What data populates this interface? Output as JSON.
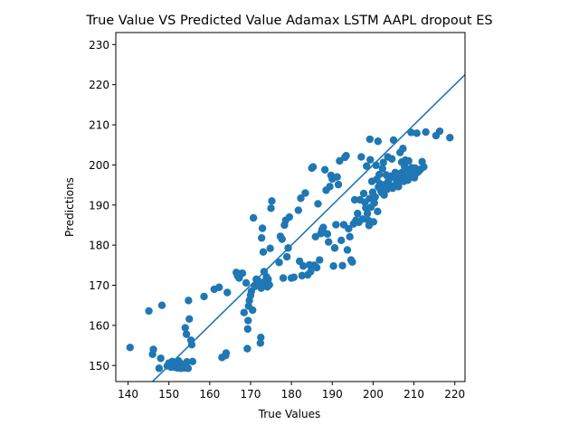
{
  "chart_data": {
    "type": "scatter",
    "title": "True Value VS Predicted Value  Adamax LSTM AAPL dropout ES",
    "xlabel": "True Values",
    "ylabel": "Predictions",
    "xlim": [
      137,
      222.5
    ],
    "ylim": [
      146,
      233
    ],
    "xticks": [
      140,
      150,
      160,
      170,
      180,
      190,
      200,
      210,
      220
    ],
    "yticks": [
      150,
      160,
      170,
      180,
      190,
      200,
      210,
      220,
      230
    ],
    "grid": false,
    "legend": "none",
    "point_color": "#1f77b4",
    "reference_line": {
      "type": "identity",
      "color": "#1f77b4"
    },
    "series": [
      {
        "points": [
          [
            140.5,
            154.5
          ],
          [
            145.1,
            163.6
          ],
          [
            146.0,
            152.8
          ],
          [
            146.2,
            154.0
          ],
          [
            147.6,
            149.3
          ],
          [
            148.0,
            151.8
          ],
          [
            148.3,
            165.0
          ],
          [
            149.6,
            149.9
          ],
          [
            150.0,
            150.6
          ],
          [
            150.5,
            149.6
          ],
          [
            150.8,
            151.0
          ],
          [
            151.1,
            150.6
          ],
          [
            151.4,
            149.6
          ],
          [
            151.7,
            150.3
          ],
          [
            152.0,
            149.4
          ],
          [
            152.3,
            151.2
          ],
          [
            152.6,
            150.8
          ],
          [
            152.9,
            149.3
          ],
          [
            153.2,
            150.0
          ],
          [
            153.5,
            149.6
          ],
          [
            153.8,
            149.4
          ],
          [
            154.0,
            159.4
          ],
          [
            154.3,
            157.8
          ],
          [
            154.4,
            150.9
          ],
          [
            154.7,
            149.3
          ],
          [
            154.8,
            166.2
          ],
          [
            155.0,
            161.6
          ],
          [
            155.4,
            156.3
          ],
          [
            155.6,
            155.2
          ],
          [
            155.8,
            151.0
          ],
          [
            158.6,
            167.2
          ],
          [
            161.1,
            169.0
          ],
          [
            162.3,
            169.5
          ],
          [
            163.0,
            152.0
          ],
          [
            163.9,
            152.5
          ],
          [
            164.0,
            153.1
          ],
          [
            164.3,
            168.2
          ],
          [
            166.5,
            173.2
          ],
          [
            166.8,
            172.4
          ],
          [
            167.2,
            171.8
          ],
          [
            167.6,
            172.9
          ],
          [
            168.0,
            173.0
          ],
          [
            168.4,
            163.2
          ],
          [
            168.9,
            170.6
          ],
          [
            169.2,
            154.2
          ],
          [
            169.3,
            159.1
          ],
          [
            169.4,
            161.2
          ],
          [
            169.5,
            164.8
          ],
          [
            169.7,
            166.2
          ],
          [
            170.0,
            167.5
          ],
          [
            170.2,
            168.5
          ],
          [
            170.5,
            163.8
          ],
          [
            170.7,
            186.8
          ],
          [
            171.0,
            169.7
          ],
          [
            171.4,
            171.5
          ],
          [
            171.6,
            170.5
          ],
          [
            171.8,
            171.2
          ],
          [
            172.1,
            170.0
          ],
          [
            172.4,
            155.6
          ],
          [
            172.5,
            157.0
          ],
          [
            172.6,
            169.3
          ],
          [
            172.7,
            181.8
          ],
          [
            172.9,
            184.2
          ],
          [
            173.1,
            178.3
          ],
          [
            173.3,
            173.4
          ],
          [
            173.5,
            171.0
          ],
          [
            173.7,
            170.3
          ],
          [
            173.9,
            172.1
          ],
          [
            174.1,
            169.6
          ],
          [
            174.3,
            171.5
          ],
          [
            174.6,
            170.1
          ],
          [
            174.8,
            179.2
          ],
          [
            175.0,
            189.2
          ],
          [
            175.2,
            191.0
          ],
          [
            177.0,
            175.7
          ],
          [
            177.3,
            182.2
          ],
          [
            177.7,
            181.5
          ],
          [
            178.0,
            171.8
          ],
          [
            178.3,
            185.0
          ],
          [
            178.6,
            186.2
          ],
          [
            178.9,
            177.1
          ],
          [
            179.2,
            179.3
          ],
          [
            179.5,
            187.0
          ],
          [
            180.0,
            171.8
          ],
          [
            180.6,
            172.0
          ],
          [
            181.7,
            188.7
          ],
          [
            182.0,
            176.0
          ],
          [
            182.3,
            191.7
          ],
          [
            182.6,
            172.4
          ],
          [
            182.9,
            174.8
          ],
          [
            183.4,
            193.0
          ],
          [
            184.0,
            172.6
          ],
          [
            184.4,
            175.1
          ],
          [
            184.7,
            173.4
          ],
          [
            185.0,
            199.2
          ],
          [
            185.3,
            199.5
          ],
          [
            185.6,
            175.0
          ],
          [
            185.9,
            182.1
          ],
          [
            186.2,
            174.4
          ],
          [
            186.5,
            190.3
          ],
          [
            186.9,
            176.3
          ],
          [
            187.2,
            182.9
          ],
          [
            187.5,
            183.9
          ],
          [
            187.8,
            184.4
          ],
          [
            188.2,
            198.8
          ],
          [
            188.5,
            193.7
          ],
          [
            188.8,
            182.8
          ],
          [
            189.1,
            180.8
          ],
          [
            189.4,
            194.6
          ],
          [
            189.7,
            197.4
          ],
          [
            190.0,
            196.5
          ],
          [
            190.3,
            174.8
          ],
          [
            190.6,
            179.3
          ],
          [
            190.9,
            185.1
          ],
          [
            191.2,
            197.0
          ],
          [
            191.5,
            195.1
          ],
          [
            191.8,
            201.0
          ],
          [
            192.2,
            181.2
          ],
          [
            192.5,
            174.9
          ],
          [
            192.8,
            185.1
          ],
          [
            193.1,
            201.9
          ],
          [
            193.4,
            202.3
          ],
          [
            193.7,
            178.8
          ],
          [
            194.0,
            184.1
          ],
          [
            194.3,
            182.1
          ],
          [
            194.6,
            176.3
          ],
          [
            194.9,
            175.8
          ],
          [
            195.2,
            185.3
          ],
          [
            195.5,
            191.3
          ],
          [
            195.8,
            186.2
          ],
          [
            196.2,
            187.9
          ],
          [
            196.5,
            185.7
          ],
          [
            196.8,
            191.3
          ],
          [
            197.1,
            202.0
          ],
          [
            197.4,
            186.5
          ],
          [
            197.7,
            192.9
          ],
          [
            198.0,
            190.7
          ],
          [
            198.2,
            189.3
          ],
          [
            198.4,
            199.7
          ],
          [
            198.6,
            187.9
          ],
          [
            198.8,
            186.2
          ],
          [
            199.0,
            184.9
          ],
          [
            199.1,
            191.6
          ],
          [
            199.2,
            206.4
          ],
          [
            199.3,
            201.3
          ],
          [
            199.5,
            189.5
          ],
          [
            199.7,
            195.9
          ],
          [
            199.9,
            193.2
          ],
          [
            200.1,
            185.8
          ],
          [
            200.3,
            190.5
          ],
          [
            200.5,
            192.0
          ],
          [
            200.7,
            199.9
          ],
          [
            200.9,
            196.4
          ],
          [
            201.1,
            188.4
          ],
          [
            201.2,
            205.9
          ],
          [
            201.3,
            194.5
          ],
          [
            201.5,
            197.6
          ],
          [
            201.7,
            195.3
          ],
          [
            201.9,
            193.6
          ],
          [
            202.1,
            193.1
          ],
          [
            202.3,
            199.1
          ],
          [
            202.5,
            200.6
          ],
          [
            202.7,
            192.5
          ],
          [
            202.9,
            194.1
          ],
          [
            203.1,
            195.2
          ],
          [
            203.2,
            197.5
          ],
          [
            203.4,
            193.9
          ],
          [
            203.6,
            202.0
          ],
          [
            203.8,
            196.3
          ],
          [
            204.0,
            195.0
          ],
          [
            204.2,
            194.4
          ],
          [
            204.4,
            197.2
          ],
          [
            204.6,
            201.5
          ],
          [
            204.8,
            194.2
          ],
          [
            205.0,
            206.2
          ],
          [
            205.2,
            196.9
          ],
          [
            205.4,
            198.1
          ],
          [
            205.6,
            195.2
          ],
          [
            205.8,
            195.6
          ],
          [
            206.0,
            197.8
          ],
          [
            206.2,
            194.6
          ],
          [
            206.4,
            196.0
          ],
          [
            206.6,
            203.1
          ],
          [
            206.8,
            197.3
          ],
          [
            207.0,
            200.7
          ],
          [
            207.2,
            198.2
          ],
          [
            207.3,
            204.1
          ],
          [
            207.5,
            195.9
          ],
          [
            207.7,
            199.7
          ],
          [
            207.9,
            201.2
          ],
          [
            208.1,
            197.0
          ],
          [
            208.3,
            199.0
          ],
          [
            208.5,
            196.2
          ],
          [
            208.7,
            201.0
          ],
          [
            208.9,
            197.4
          ],
          [
            209.1,
            198.6
          ],
          [
            209.3,
            208.1
          ],
          [
            209.5,
            199.3
          ],
          [
            209.7,
            198.2
          ],
          [
            209.9,
            198.6
          ],
          [
            210.1,
            196.8
          ],
          [
            210.3,
            199.2
          ],
          [
            210.5,
            197.9
          ],
          [
            210.7,
            207.9
          ],
          [
            211.1,
            198.3
          ],
          [
            211.6,
            198.9
          ],
          [
            212.0,
            200.8
          ],
          [
            212.4,
            199.5
          ],
          [
            212.9,
            208.2
          ],
          [
            215.4,
            207.3
          ],
          [
            216.3,
            208.4
          ],
          [
            218.8,
            206.8
          ]
        ]
      }
    ]
  }
}
